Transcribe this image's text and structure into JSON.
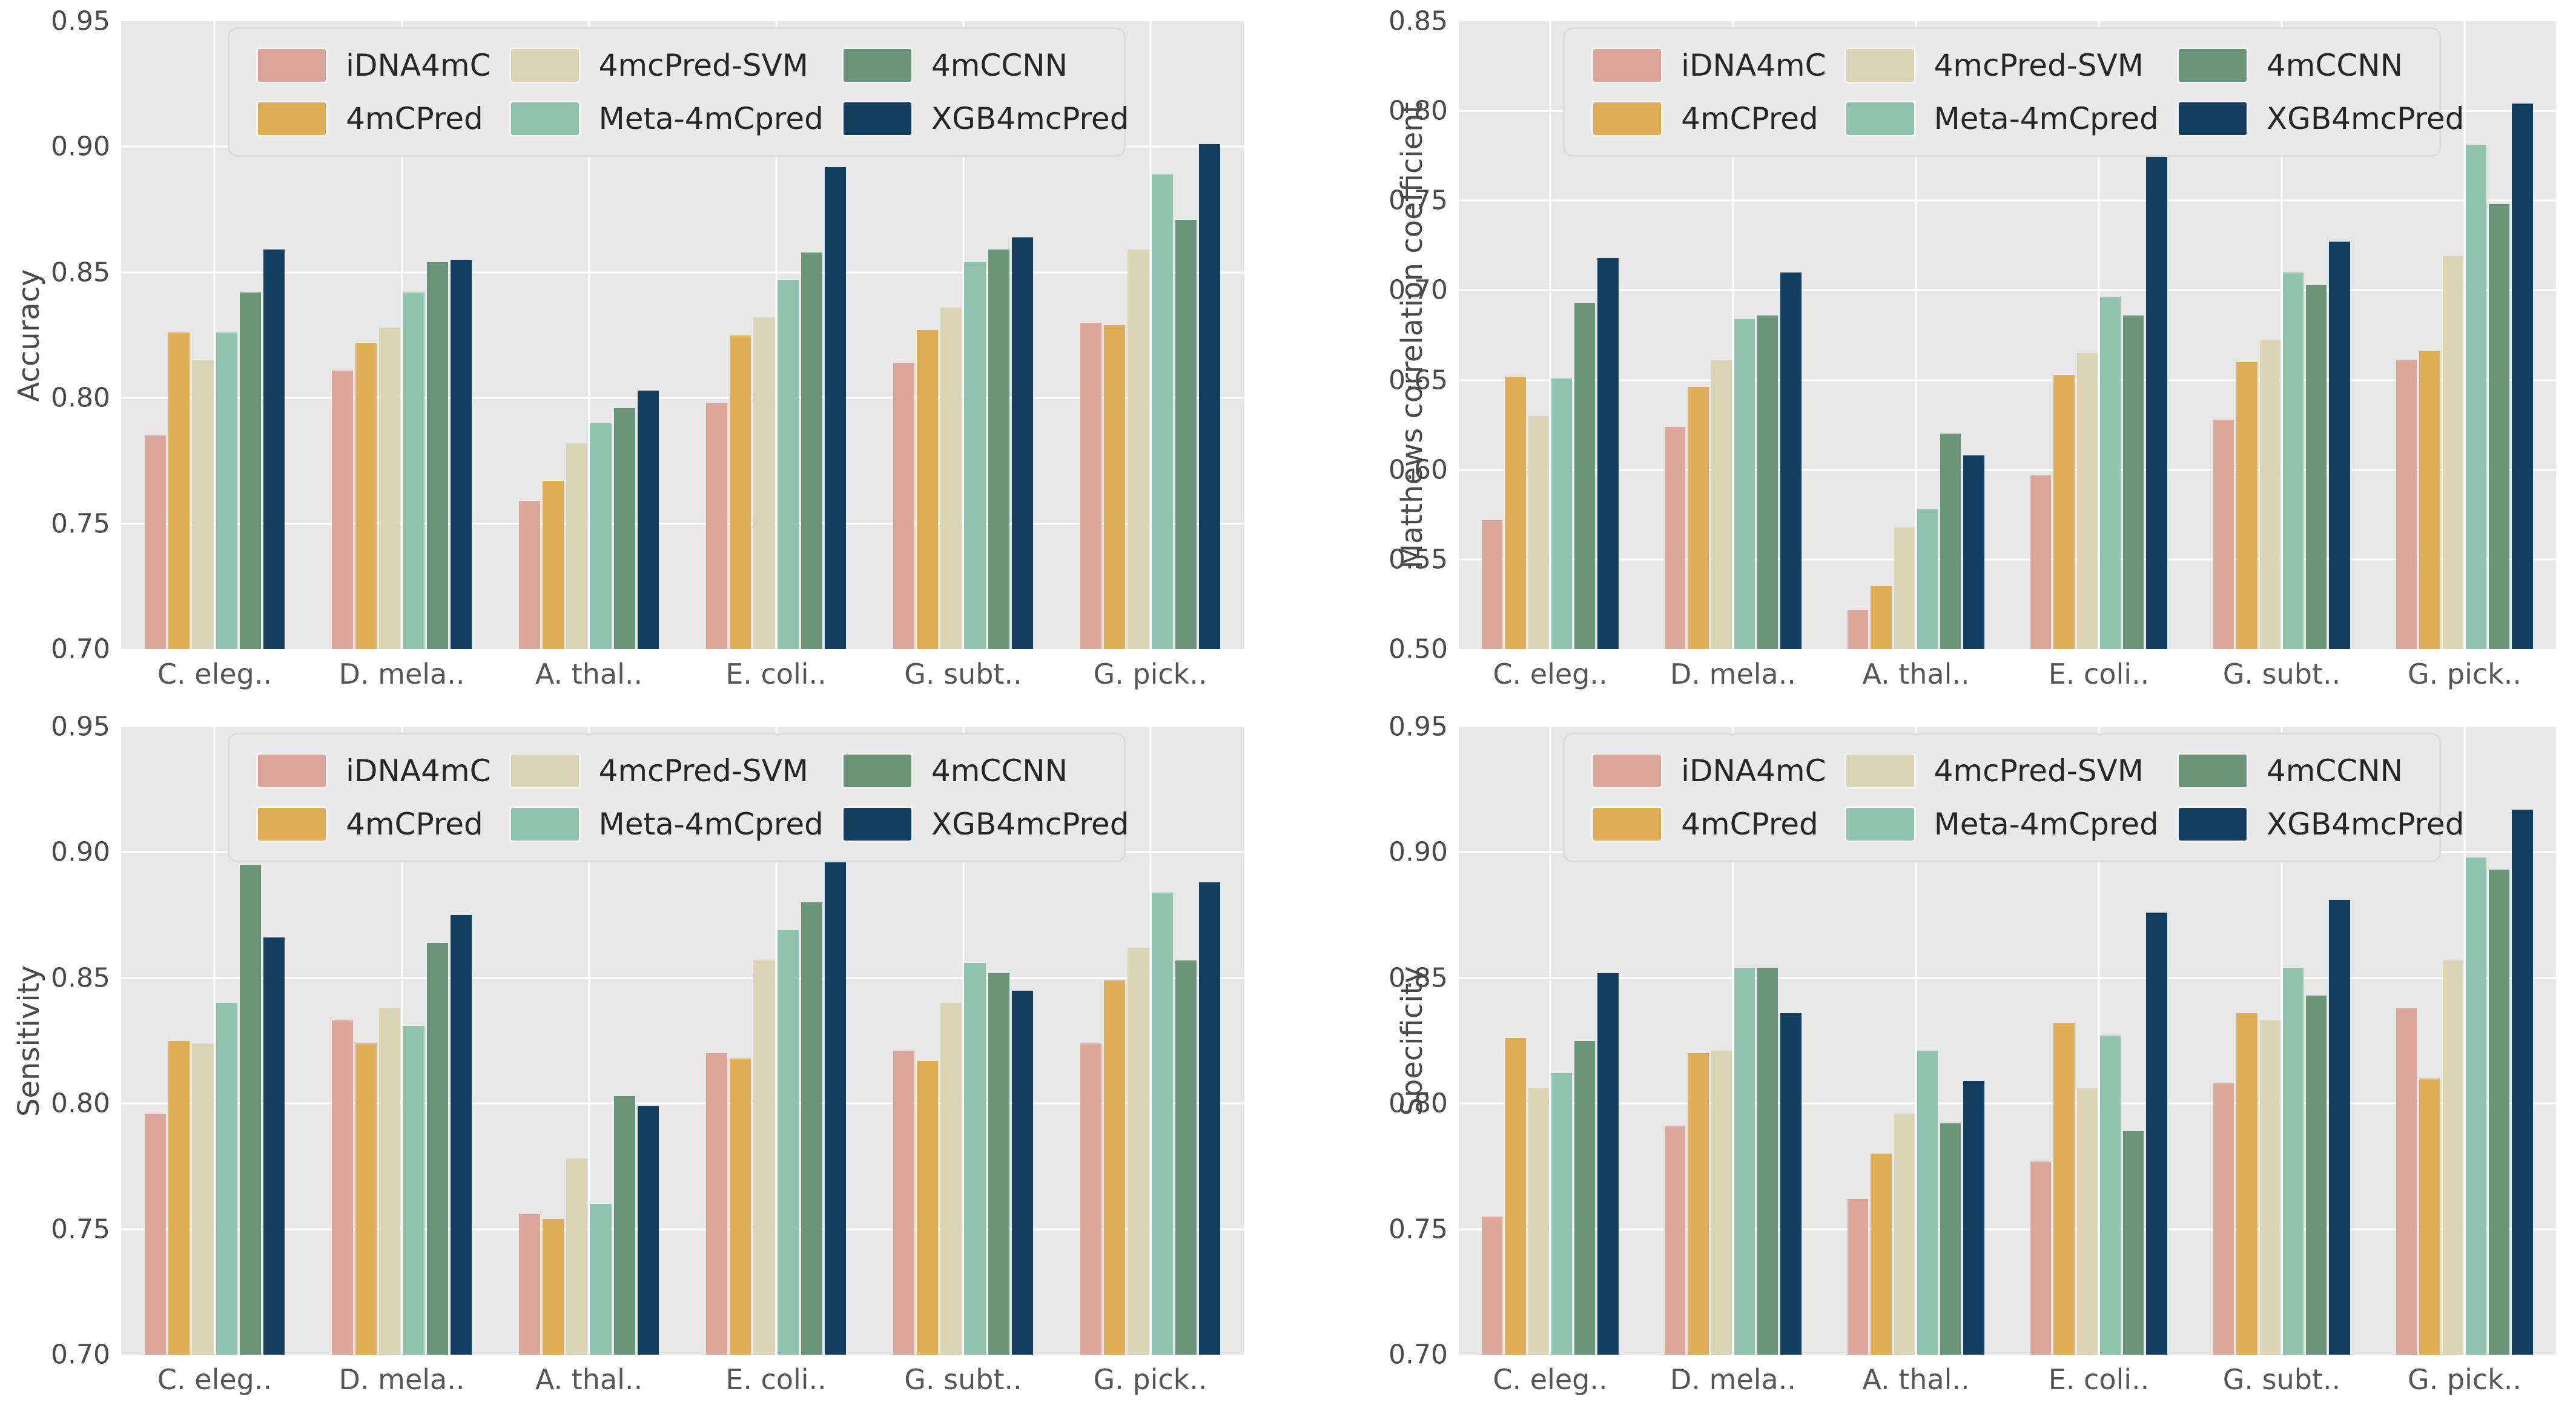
{
  "figure": {
    "background_color": "#ffffff",
    "plot_background_color": "#e8e7e7",
    "gridline_color": "#ffffff",
    "tick_label_color": "#4a4a4a",
    "series": [
      {
        "name": "iDNA4mC",
        "color": "#dda69b"
      },
      {
        "name": "4mCPred",
        "color": "#e0af55"
      },
      {
        "name": "4mcPred-SVM",
        "color": "#dbd5b5"
      },
      {
        "name": "Meta-4mCpred",
        "color": "#8fc2af"
      },
      {
        "name": "4mCCNN",
        "color": "#6a9477"
      },
      {
        "name": "XGB4mcPred",
        "color": "#123e5f"
      }
    ]
  },
  "chart_data": [
    {
      "type": "bar",
      "title": "",
      "ylabel": "Accuracy",
      "xlabel": "",
      "ylim": [
        0.7,
        0.95
      ],
      "ytick_step": 0.05,
      "grid": true,
      "legend_position": "upper center, 3 columns",
      "categories": [
        "C. eleg..",
        "D. mela..",
        "A. thal..",
        "E. coli..",
        "G. subt..",
        "G. pick.."
      ],
      "series": [
        {
          "name": "iDNA4mC",
          "values": [
            0.785,
            0.811,
            0.759,
            0.798,
            0.814,
            0.83
          ]
        },
        {
          "name": "4mCPred",
          "values": [
            0.826,
            0.822,
            0.767,
            0.825,
            0.827,
            0.829
          ]
        },
        {
          "name": "4mcPred-SVM",
          "values": [
            0.815,
            0.828,
            0.782,
            0.832,
            0.836,
            0.859
          ]
        },
        {
          "name": "Meta-4mCpred",
          "values": [
            0.826,
            0.842,
            0.79,
            0.847,
            0.854,
            0.889
          ]
        },
        {
          "name": "4mCCNN",
          "values": [
            0.842,
            0.854,
            0.796,
            0.858,
            0.859,
            0.871
          ]
        },
        {
          "name": "XGB4mcPred",
          "values": [
            0.859,
            0.855,
            0.803,
            0.892,
            0.864,
            0.901
          ]
        }
      ]
    },
    {
      "type": "bar",
      "title": "",
      "ylabel": "Matthews correlation coefficient",
      "xlabel": "",
      "ylim": [
        0.5,
        0.85
      ],
      "ytick_step": 0.05,
      "grid": true,
      "legend_position": "upper center, 3 columns",
      "categories": [
        "C. eleg..",
        "D. mela..",
        "A. thal..",
        "E. coli..",
        "G. subt..",
        "G. pick.."
      ],
      "series": [
        {
          "name": "iDNA4mC",
          "values": [
            0.572,
            0.624,
            0.522,
            0.597,
            0.628,
            0.661
          ]
        },
        {
          "name": "4mCPred",
          "values": [
            0.652,
            0.646,
            0.535,
            0.653,
            0.66,
            0.666
          ]
        },
        {
          "name": "4mcPred-SVM",
          "values": [
            0.63,
            0.661,
            0.568,
            0.665,
            0.672,
            0.719
          ]
        },
        {
          "name": "Meta-4mCpred",
          "values": [
            0.651,
            0.684,
            0.578,
            0.696,
            0.71,
            0.781
          ]
        },
        {
          "name": "4mCCNN",
          "values": [
            0.693,
            0.686,
            0.62,
            0.686,
            0.703,
            0.748
          ]
        },
        {
          "name": "XGB4mcPred",
          "values": [
            0.718,
            0.71,
            0.608,
            0.783,
            0.727,
            0.804
          ]
        }
      ]
    },
    {
      "type": "bar",
      "title": "",
      "ylabel": "Sensitivity",
      "xlabel": "",
      "ylim": [
        0.7,
        0.95
      ],
      "ytick_step": 0.05,
      "grid": true,
      "legend_position": "upper center, 3 columns",
      "categories": [
        "C. eleg..",
        "D. mela..",
        "A. thal..",
        "E. coli..",
        "G. subt..",
        "G. pick.."
      ],
      "series": [
        {
          "name": "iDNA4mC",
          "values": [
            0.796,
            0.833,
            0.756,
            0.82,
            0.821,
            0.824
          ]
        },
        {
          "name": "4mCPred",
          "values": [
            0.825,
            0.824,
            0.754,
            0.818,
            0.817,
            0.849
          ]
        },
        {
          "name": "4mcPred-SVM",
          "values": [
            0.824,
            0.838,
            0.778,
            0.857,
            0.84,
            0.862
          ]
        },
        {
          "name": "Meta-4mCpred",
          "values": [
            0.84,
            0.831,
            0.76,
            0.869,
            0.856,
            0.884
          ]
        },
        {
          "name": "4mCCNN",
          "values": [
            0.895,
            0.864,
            0.803,
            0.88,
            0.852,
            0.857
          ]
        },
        {
          "name": "XGB4mcPred",
          "values": [
            0.866,
            0.875,
            0.799,
            0.906,
            0.845,
            0.888
          ]
        }
      ]
    },
    {
      "type": "bar",
      "title": "",
      "ylabel": "Specificity",
      "xlabel": "",
      "ylim": [
        0.7,
        0.95
      ],
      "ytick_step": 0.05,
      "grid": true,
      "legend_position": "upper center, 3 columns",
      "categories": [
        "C. eleg..",
        "D. mela..",
        "A. thal..",
        "E. coli..",
        "G. subt..",
        "G. pick.."
      ],
      "series": [
        {
          "name": "iDNA4mC",
          "values": [
            0.755,
            0.791,
            0.762,
            0.777,
            0.808,
            0.838
          ]
        },
        {
          "name": "4mCPred",
          "values": [
            0.826,
            0.82,
            0.78,
            0.832,
            0.836,
            0.81
          ]
        },
        {
          "name": "4mcPred-SVM",
          "values": [
            0.806,
            0.821,
            0.796,
            0.806,
            0.833,
            0.857
          ]
        },
        {
          "name": "Meta-4mCpred",
          "values": [
            0.812,
            0.854,
            0.821,
            0.827,
            0.854,
            0.898
          ]
        },
        {
          "name": "4mCCNN",
          "values": [
            0.825,
            0.854,
            0.792,
            0.789,
            0.843,
            0.893
          ]
        },
        {
          "name": "XGB4mcPred",
          "values": [
            0.852,
            0.836,
            0.809,
            0.876,
            0.881,
            0.917
          ]
        }
      ]
    }
  ]
}
